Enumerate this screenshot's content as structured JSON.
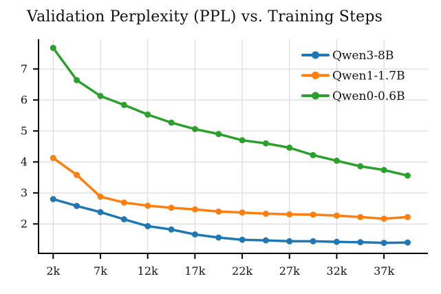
{
  "chart_data": {
    "type": "line",
    "title": "Validation Perplexity (PPL) vs. Training Steps",
    "xlabel": "",
    "ylabel": "",
    "x_axis": {
      "unit": "training steps",
      "tick_values_k": [
        2,
        7,
        12,
        17,
        22,
        27,
        32,
        37
      ],
      "tick_labels": [
        "2k",
        "7k",
        "12k",
        "17k",
        "22k",
        "27k",
        "32k",
        "37k"
      ],
      "range_k": [
        0.45,
        41.65
      ]
    },
    "y_axis": {
      "unit": "validation perplexity",
      "tick_values": [
        2,
        3,
        4,
        5,
        6,
        7
      ],
      "tick_labels": [
        "2",
        "3",
        "4",
        "5",
        "6",
        "7"
      ],
      "range": [
        1.05,
        7.96
      ]
    },
    "x_k": [
      2,
      4.5,
      7,
      9.5,
      12,
      14.5,
      17,
      19.5,
      22,
      24.5,
      27,
      29.5,
      32,
      34.5,
      37,
      39.5
    ],
    "series": [
      {
        "name": "Qwen3-8B",
        "color": "#1f77b4",
        "values": [
          2.8,
          2.58,
          2.38,
          2.15,
          1.93,
          1.82,
          1.66,
          1.56,
          1.49,
          1.47,
          1.44,
          1.44,
          1.42,
          1.41,
          1.39,
          1.4
        ]
      },
      {
        "name": "Qwen1-1.7B",
        "color": "#ff7f0e",
        "values": [
          4.13,
          3.58,
          2.88,
          2.69,
          2.59,
          2.52,
          2.47,
          2.4,
          2.37,
          2.33,
          2.31,
          2.3,
          2.27,
          2.22,
          2.17,
          2.22
        ]
      },
      {
        "name": "Qwen0-0.6B",
        "color": "#2ca02c",
        "values": [
          7.68,
          6.64,
          6.13,
          5.84,
          5.53,
          5.27,
          5.06,
          4.9,
          4.7,
          4.6,
          4.46,
          4.22,
          4.04,
          3.86,
          3.74,
          3.56
        ]
      }
    ],
    "legend": {
      "position": "upper right",
      "frame": false
    },
    "grid": {
      "visible": true,
      "color": "#dcdcdc"
    },
    "style": {
      "line_width": 3.5,
      "marker": "circle",
      "marker_radius": 4.5,
      "spine_color": "#000000",
      "text_color": "#111111",
      "background": "#ffffff"
    }
  }
}
